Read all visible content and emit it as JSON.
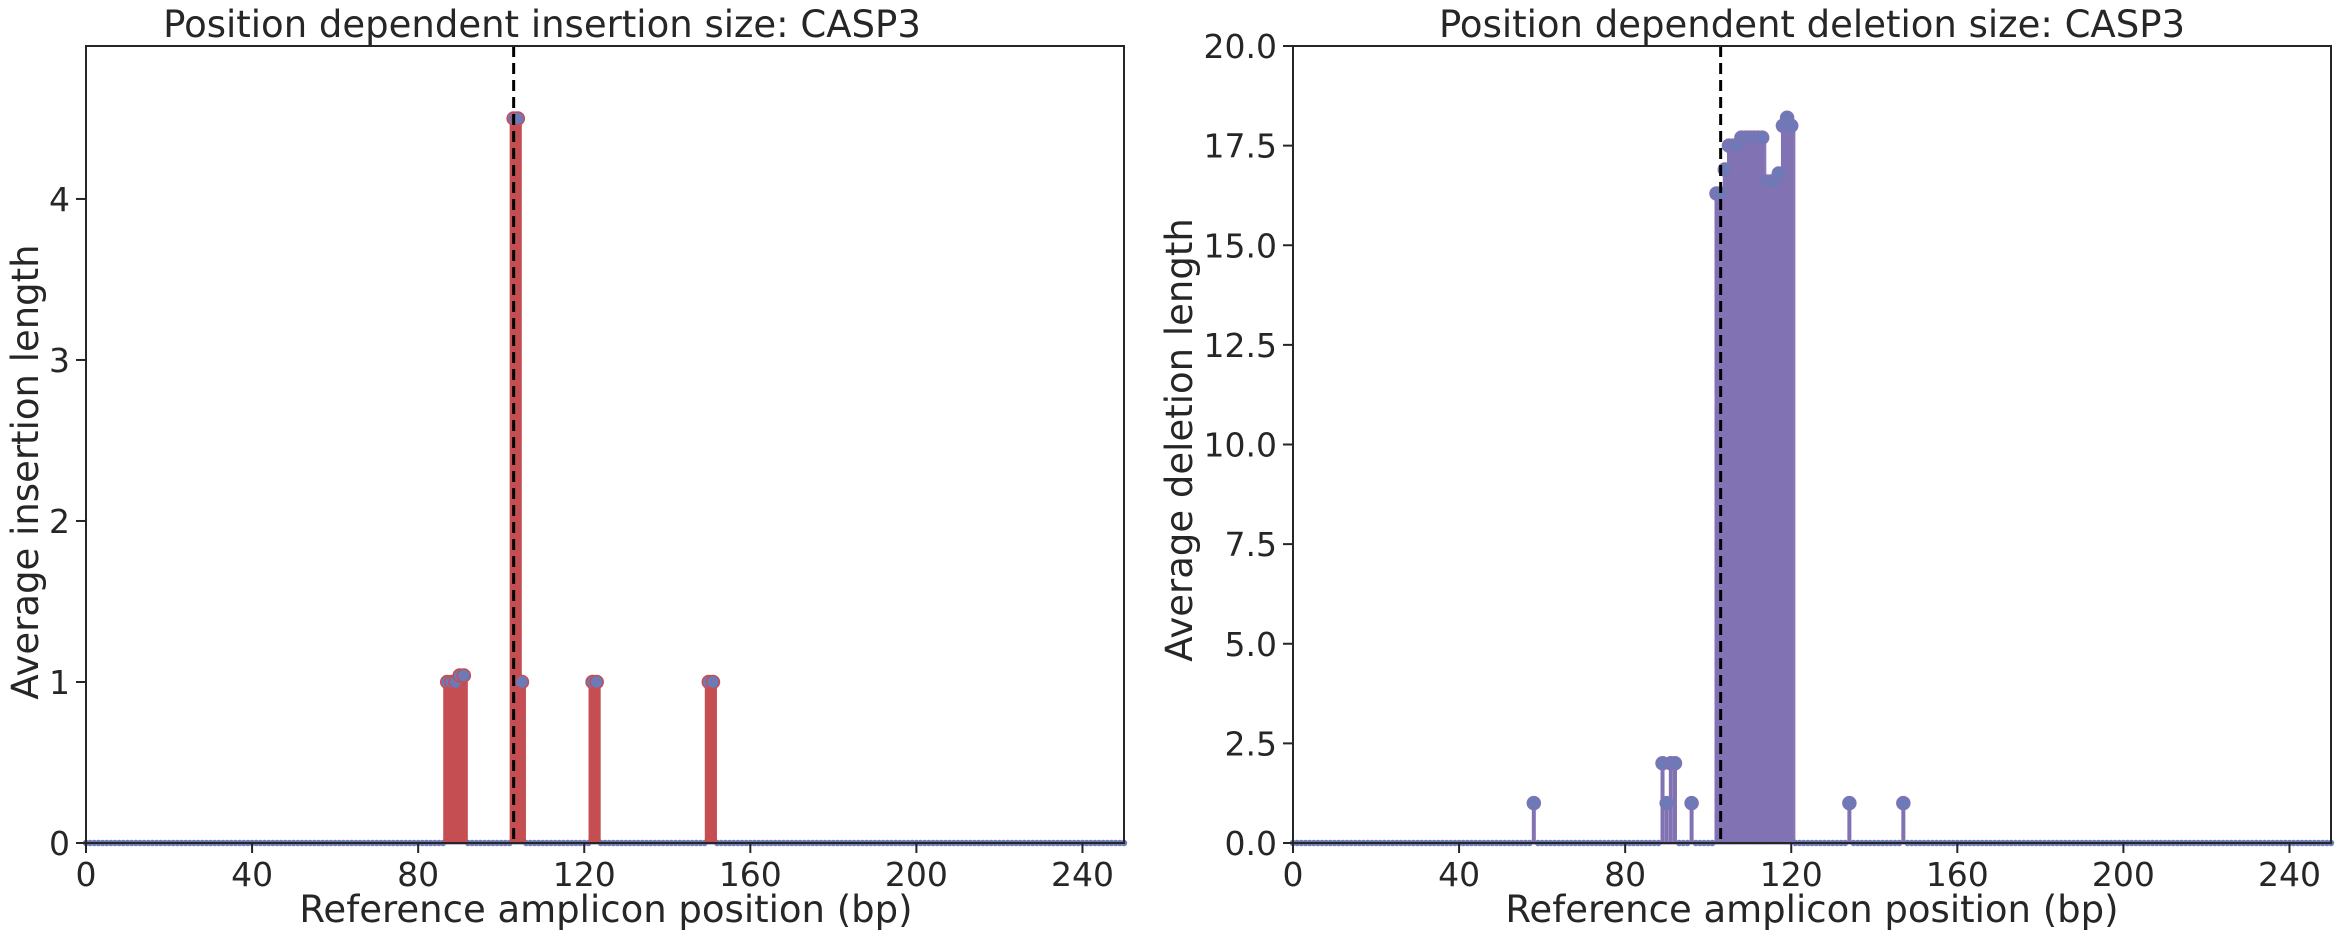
{
  "colors": {
    "insertion": "#c44e52",
    "deletion": "#8172b3",
    "marker": "#6c7ab8",
    "cut_line": "#000000",
    "axes": "#262626"
  },
  "chart_data": [
    {
      "type": "bar",
      "title": "Position dependent insertion size: CASP3",
      "xlabel": "Reference amplicon position (bp)",
      "ylabel": "Average insertion length",
      "xlim": [
        0,
        250
      ],
      "ylim": [
        0,
        4.95
      ],
      "xticks": [
        0,
        40,
        80,
        120,
        160,
        200,
        240
      ],
      "yticks": [
        0,
        1,
        2,
        3,
        4
      ],
      "ytick_labels": [
        "0",
        "1",
        "2",
        "3",
        "4"
      ],
      "cut_site": 103,
      "grid": false,
      "points": [
        {
          "x": 87,
          "y": 1.0
        },
        {
          "x": 88,
          "y": 1.0
        },
        {
          "x": 89,
          "y": 1.0
        },
        {
          "x": 90,
          "y": 1.04
        },
        {
          "x": 91,
          "y": 1.04
        },
        {
          "x": 103,
          "y": 4.5
        },
        {
          "x": 104,
          "y": 4.5
        },
        {
          "x": 105,
          "y": 1.0
        },
        {
          "x": 122,
          "y": 1.0
        },
        {
          "x": 123,
          "y": 1.0
        },
        {
          "x": 150,
          "y": 1.0
        },
        {
          "x": 151,
          "y": 1.0
        }
      ]
    },
    {
      "type": "bar",
      "title": "Position dependent deletion size: CASP3",
      "xlabel": "Reference amplicon position (bp)",
      "ylabel": "Average deletion length",
      "xlim": [
        0,
        250
      ],
      "ylim": [
        0,
        20
      ],
      "xticks": [
        0,
        40,
        80,
        120,
        160,
        200,
        240
      ],
      "yticks": [
        0,
        2.5,
        5,
        7.5,
        10,
        12.5,
        15,
        17.5,
        20
      ],
      "ytick_labels": [
        "0.0",
        "2.5",
        "5.0",
        "7.5",
        "10.0",
        "12.5",
        "15.0",
        "17.5",
        "20.0"
      ],
      "cut_site": 103,
      "grid": false,
      "points": [
        {
          "x": 58,
          "y": 1.0
        },
        {
          "x": 89,
          "y": 2.0
        },
        {
          "x": 90,
          "y": 1.0
        },
        {
          "x": 91,
          "y": 2.0
        },
        {
          "x": 92,
          "y": 2.0
        },
        {
          "x": 96,
          "y": 1.0
        },
        {
          "x": 102,
          "y": 16.3
        },
        {
          "x": 103,
          "y": 16.3
        },
        {
          "x": 104,
          "y": 16.9
        },
        {
          "x": 105,
          "y": 17.5
        },
        {
          "x": 106,
          "y": 17.5
        },
        {
          "x": 107,
          "y": 17.5
        },
        {
          "x": 108,
          "y": 17.7
        },
        {
          "x": 109,
          "y": 17.7
        },
        {
          "x": 110,
          "y": 17.7
        },
        {
          "x": 111,
          "y": 17.7
        },
        {
          "x": 112,
          "y": 17.7
        },
        {
          "x": 113,
          "y": 17.7
        },
        {
          "x": 114,
          "y": 16.6
        },
        {
          "x": 115,
          "y": 16.6
        },
        {
          "x": 116,
          "y": 16.6
        },
        {
          "x": 117,
          "y": 16.8
        },
        {
          "x": 118,
          "y": 18.0
        },
        {
          "x": 119,
          "y": 18.2
        },
        {
          "x": 120,
          "y": 18.0
        },
        {
          "x": 134,
          "y": 1.0
        },
        {
          "x": 147,
          "y": 1.0
        }
      ]
    }
  ]
}
